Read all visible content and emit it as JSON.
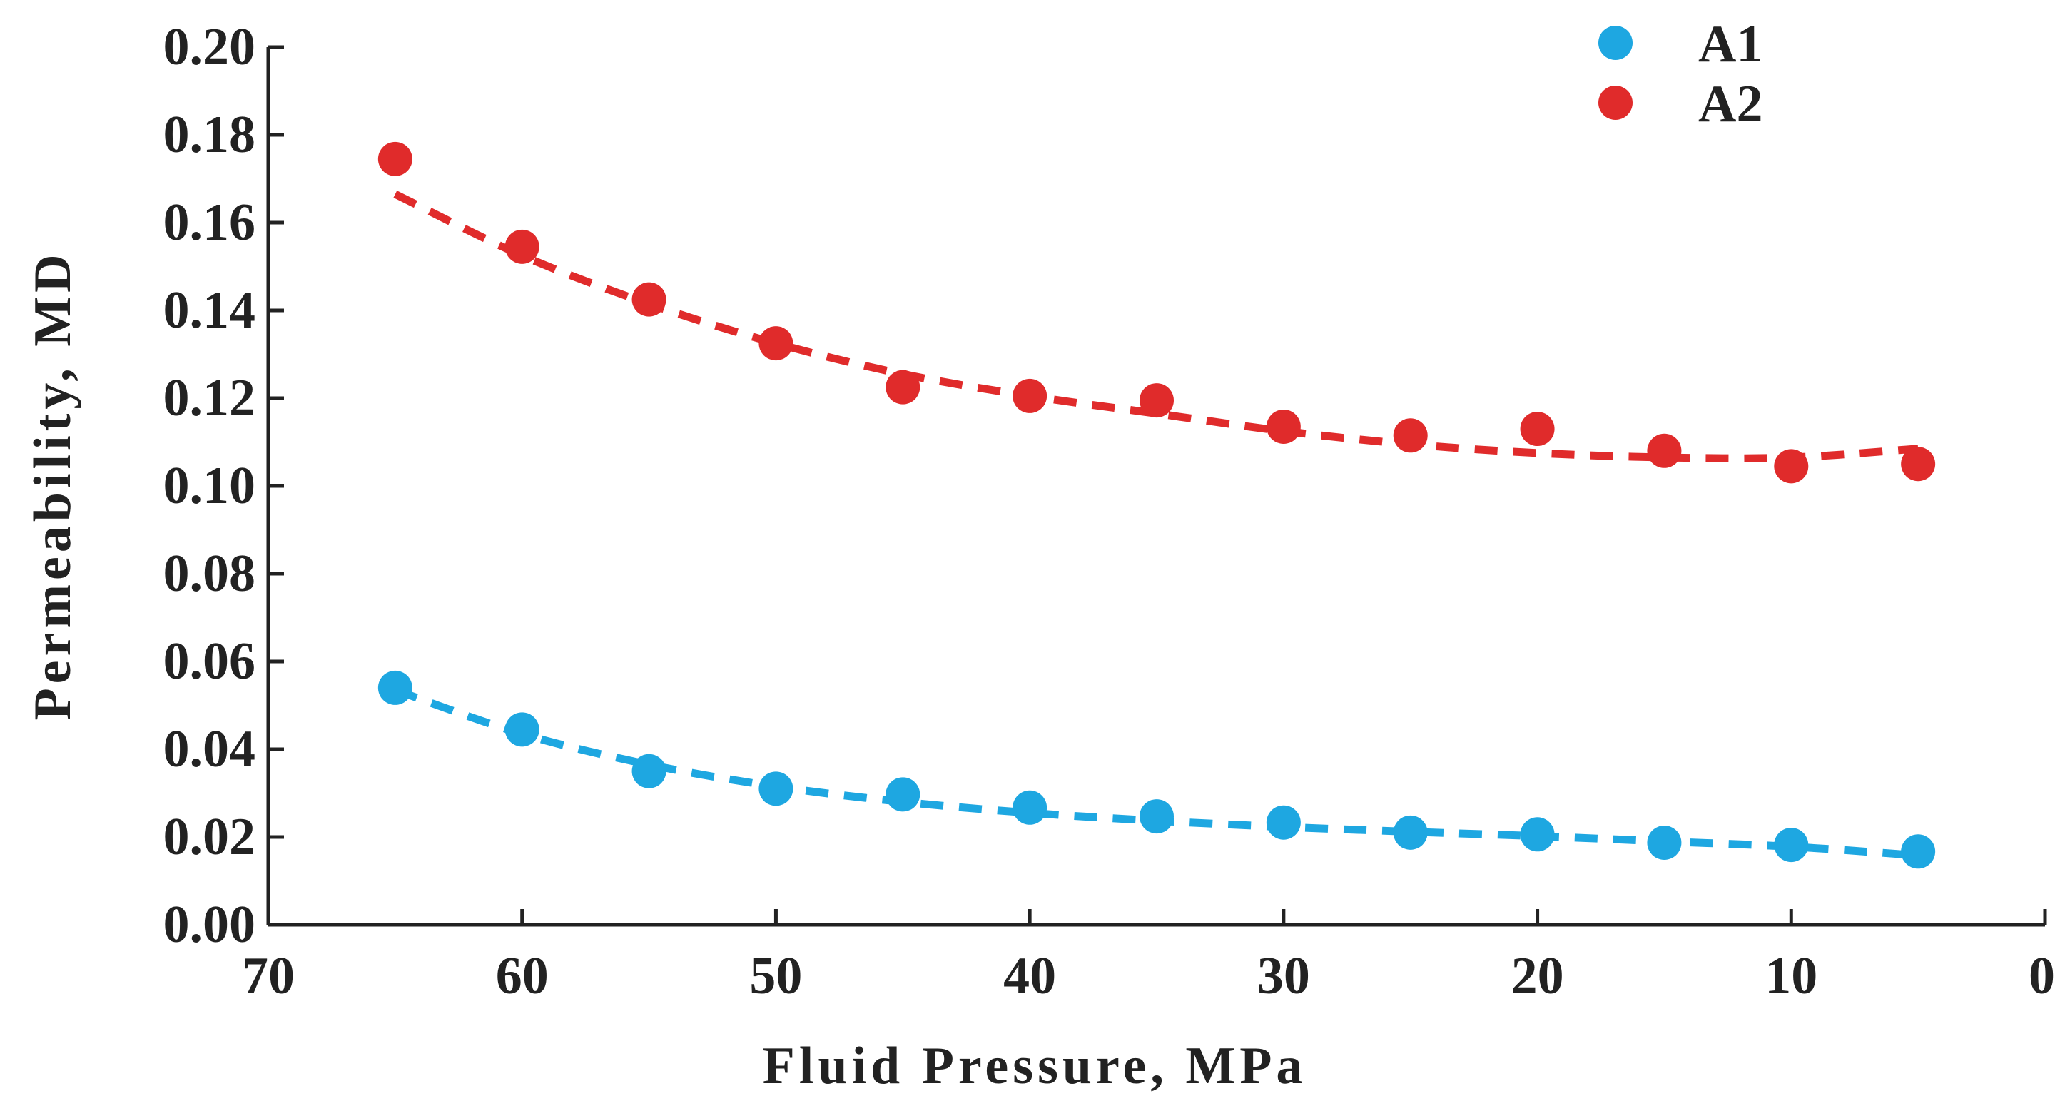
{
  "chart_data": {
    "type": "scatter",
    "title": "",
    "xlabel": "Fluid Pressure, MPa",
    "ylabel": "Permeability, MD",
    "xlim": [
      70,
      0
    ],
    "ylim": [
      0,
      0.2
    ],
    "xticks": [
      "70",
      "60",
      "50",
      "40",
      "30",
      "20",
      "10",
      "0"
    ],
    "yticks": [
      "0.00",
      "0.02",
      "0.04",
      "0.06",
      "0.08",
      "0.10",
      "0.12",
      "0.14",
      "0.16",
      "0.18",
      "0.20"
    ],
    "legend_position": "top-right",
    "series": [
      {
        "name": "A1",
        "color": "#1ea7e1",
        "x": [
          65,
          60,
          55,
          50,
          45,
          40,
          35,
          30,
          25,
          20,
          15,
          10,
          5
        ],
        "values": [
          0.054,
          0.0445,
          0.035,
          0.031,
          0.0297,
          0.0267,
          0.0247,
          0.0233,
          0.021,
          0.0206,
          0.0187,
          0.0182,
          0.0167
        ],
        "trend": [
          0.0535,
          0.0435,
          0.0365,
          0.0315,
          0.028,
          0.0255,
          0.0237,
          0.0223,
          0.0212,
          0.0202,
          0.019,
          0.0178,
          0.0158
        ]
      },
      {
        "name": "A2",
        "color": "#e02b2b",
        "x": [
          65,
          60,
          55,
          50,
          45,
          40,
          35,
          30,
          25,
          20,
          15,
          10,
          5
        ],
        "values": [
          0.1745,
          0.1545,
          0.1425,
          0.1325,
          0.1225,
          0.1205,
          0.1195,
          0.1135,
          0.1115,
          0.113,
          0.108,
          0.1045,
          0.105
        ],
        "trend": [
          0.1665,
          0.1525,
          0.1415,
          0.1325,
          0.1255,
          0.1205,
          0.1165,
          0.1125,
          0.1095,
          0.1075,
          0.1065,
          0.1065,
          0.1085
        ]
      }
    ]
  }
}
